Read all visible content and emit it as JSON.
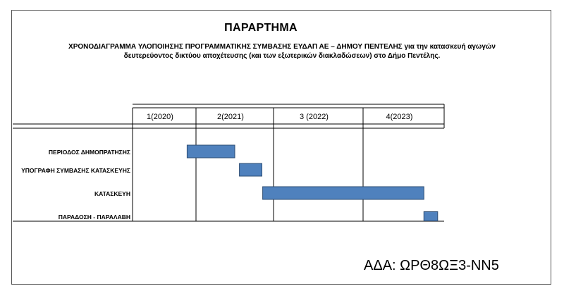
{
  "doc": {
    "title": "ΠΑΡΑΡΤΗΜΑ",
    "subtitle_line1": "ΧΡΟΝΟΔΙΑΓΡΑΜΜΑ ΥΛΟΠΟΙΗΣΗΣ ΠΡΟΓΡΑΜΜΑΤΙΚΗΣ ΣΥΜΒΑΣΗΣ ΕΥΔΑΠ ΑΕ – ΔΗΜΟΥ ΠΕΝΤΕΛΗΣ για την κατασκευή αγωγών",
    "subtitle_line2": "δευτερεύοντος δικτύου αποχέτευσης (και των εξωτερικών διακλαδώσεων) στο Δήμο  Πεντέλης.",
    "ada": "ΑΔΑ: ΩΡΘ8ΩΞ3-ΝΝ5"
  },
  "chart_data": {
    "type": "gantt",
    "bar_color": "#4f81bd",
    "periods": [
      {
        "label": "1(2020)",
        "start": 0,
        "end": 1
      },
      {
        "label": "2(2021)",
        "start": 1,
        "end": 2
      },
      {
        "label": "3 (2022)",
        "start": 2,
        "end": 3
      },
      {
        "label": "4(2023)",
        "start": 3,
        "end": 4
      }
    ],
    "tasks": [
      {
        "label": "ΠΕΡΙΟΔΟΣ  ΔΗΜΟΠΡΑΤΗΣΗΣ",
        "start": 0.86,
        "end": 1.5
      },
      {
        "label": "ΥΠΟΓΡΑΦΗ ΣΥΜΒΑΣΗΣ ΚΑΤΑΣΚΕΥΗΣ",
        "start": 1.56,
        "end": 1.85
      },
      {
        "label": "ΚΑΤΑΣΚΕΥΗ",
        "start": 1.86,
        "end": 3.75
      },
      {
        "label": "ΠΑΡΑΔΟΣΗ - ΠΑΡΑΛΑΒΗ",
        "start": 3.75,
        "end": 3.92
      }
    ]
  }
}
